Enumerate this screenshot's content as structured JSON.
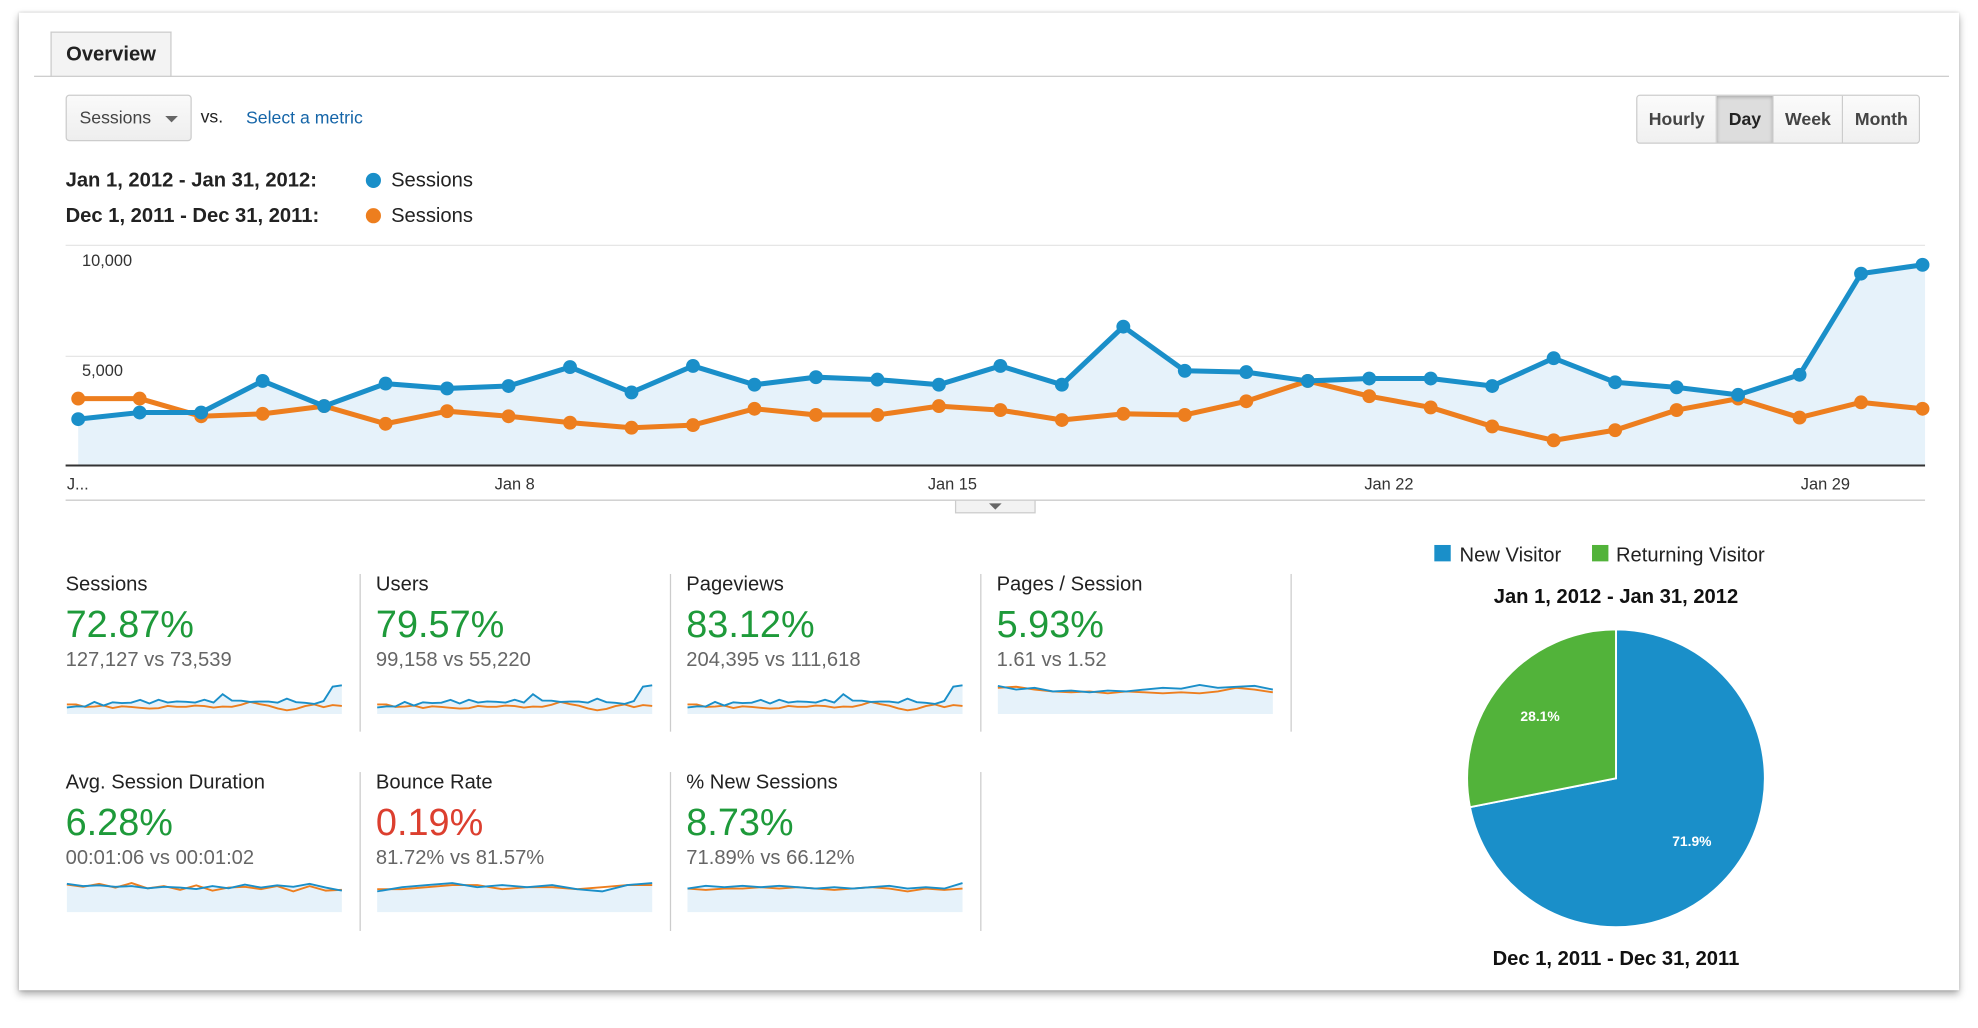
{
  "tabs": [
    {
      "label": "Overview"
    }
  ],
  "toolbar": {
    "metric_select": "Sessions",
    "vs_label": "vs.",
    "select_metric_link": "Select a metric",
    "granularity": [
      {
        "label": "Hourly",
        "active": false
      },
      {
        "label": "Day",
        "active": true
      },
      {
        "label": "Week",
        "active": false
      },
      {
        "label": "Month",
        "active": false
      }
    ]
  },
  "legend": [
    {
      "range": "Jan 1, 2012 - Jan 31, 2012:",
      "series": "Sessions",
      "color": "#1a8fc9"
    },
    {
      "range": "Dec 1, 2011 - Dec 31, 2011:",
      "series": "Sessions",
      "color": "#ed7e1e"
    }
  ],
  "chart_data": [
    {
      "type": "line",
      "ylim": [
        0,
        10000
      ],
      "yticks": [
        "10,000",
        "5,000"
      ],
      "xtick_labels": [
        "J...",
        "Jan 8",
        "Jan 15",
        "Jan 22",
        "Jan 29"
      ],
      "grid": true,
      "x": [
        1,
        2,
        3,
        4,
        5,
        6,
        7,
        8,
        9,
        10,
        11,
        12,
        13,
        14,
        15,
        16,
        17,
        18,
        19,
        20,
        21,
        22,
        23,
        24,
        25,
        26,
        27,
        28,
        29,
        30,
        31
      ],
      "series": [
        {
          "name": "Sessions",
          "period": "Jan 1, 2012 - Jan 31, 2012",
          "color": "#1a8fc9",
          "area": true,
          "values": [
            2100,
            2400,
            2400,
            3830,
            2690,
            3710,
            3490,
            3600,
            4460,
            3310,
            4510,
            3660,
            4000,
            3890,
            3660,
            4510,
            3660,
            6290,
            4290,
            4230,
            3830,
            3940,
            3940,
            3600,
            4860,
            3770,
            3540,
            3200,
            4110,
            8690,
            9090
          ]
        },
        {
          "name": "Sessions",
          "period": "Dec 1, 2011 - Dec 31, 2011",
          "color": "#ed7e1e",
          "values": [
            3030,
            3030,
            2230,
            2340,
            2690,
            1890,
            2460,
            2230,
            1940,
            1710,
            1830,
            2570,
            2290,
            2290,
            2690,
            2510,
            2060,
            2340,
            2290,
            2910,
            3830,
            3140,
            2630,
            1770,
            1140,
            1600,
            2510,
            3030,
            2170,
            2860,
            2570
          ]
        }
      ]
    },
    {
      "type": "pie",
      "title": "Jan 1, 2012 - Jan 31, 2012",
      "subtitle": "Dec 1, 2011 - Dec 31, 2011",
      "legend_position": "top",
      "slices": [
        {
          "label": "New Visitor",
          "value": 71.9,
          "display": "71.9%",
          "color": "#1a8fc9"
        },
        {
          "label": "Returning Visitor",
          "value": 28.1,
          "display": "28.1%",
          "color": "#52b33a"
        }
      ]
    }
  ],
  "metrics": [
    {
      "title": "Sessions",
      "change": "72.87%",
      "color": "#1e9a3a",
      "compare": "127,127 vs 73,539",
      "spark": "main"
    },
    {
      "title": "Users",
      "change": "79.57%",
      "color": "#1e9a3a",
      "compare": "99,158 vs 55,220",
      "spark": "main"
    },
    {
      "title": "Pageviews",
      "change": "83.12%",
      "color": "#1e9a3a",
      "compare": "204,395 vs 111,618",
      "spark": "main"
    },
    {
      "title": "Pages / Session",
      "change": "5.93%",
      "color": "#1e9a3a",
      "compare": "1.61 vs 1.52",
      "spark": {
        "cur": [
          1.62,
          1.58,
          1.6,
          1.56,
          1.57,
          1.55,
          1.57,
          1.56,
          1.58,
          1.6,
          1.59,
          1.63,
          1.6,
          1.61,
          1.62,
          1.58
        ],
        "prev": [
          1.6,
          1.61,
          1.58,
          1.56,
          1.55,
          1.56,
          1.54,
          1.56,
          1.55,
          1.54,
          1.55,
          1.54,
          1.56,
          1.6,
          1.58,
          1.55
        ]
      }
    },
    {
      "title": "Avg. Session Duration",
      "change": "6.28%",
      "color": "#1e9a3a",
      "compare": "00:01:06 vs 00:01:02",
      "spark": {
        "cur": [
          70,
          64,
          66,
          62,
          64,
          58,
          62,
          60,
          56,
          64,
          58,
          68,
          60,
          66,
          62,
          70,
          60,
          52
        ],
        "prev": [
          68,
          62,
          70,
          60,
          72,
          58,
          64,
          54,
          66,
          52,
          60,
          62,
          56,
          64,
          50,
          64,
          52,
          54
        ]
      }
    },
    {
      "title": "Bounce Rate",
      "change": "0.19%",
      "color": "#dc3f2f",
      "compare": "81.72% vs 81.57%",
      "spark": {
        "cur": [
          81.5,
          81.7,
          81.8,
          81.9,
          81.7,
          81.8,
          81.7,
          81.8,
          81.6,
          81.5,
          81.8,
          81.9
        ],
        "prev": [
          81.6,
          81.6,
          81.7,
          81.8,
          81.8,
          81.6,
          81.7,
          81.7,
          81.6,
          81.7,
          81.8,
          81.8
        ]
      }
    },
    {
      "title": "% New Sessions",
      "change": "8.73%",
      "color": "#1e9a3a",
      "compare": "71.89% vs 66.12%",
      "spark": {
        "cur": [
          68,
          70,
          69,
          70,
          69,
          70,
          69,
          68,
          69,
          68,
          69,
          70,
          68,
          69,
          68,
          72
        ],
        "prev": [
          68,
          67,
          68,
          68,
          69,
          68,
          69,
          68,
          67,
          68,
          69,
          68,
          66,
          68,
          67,
          68
        ]
      }
    }
  ]
}
